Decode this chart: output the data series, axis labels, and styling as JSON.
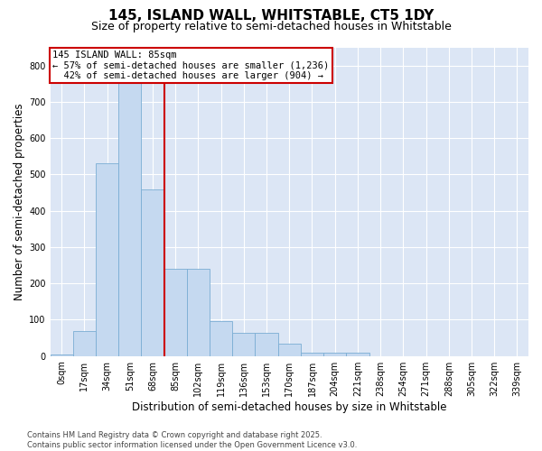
{
  "title_line1": "145, ISLAND WALL, WHITSTABLE, CT5 1DY",
  "title_line2": "Size of property relative to semi-detached houses in Whitstable",
  "xlabel": "Distribution of semi-detached houses by size in Whitstable",
  "ylabel": "Number of semi-detached properties",
  "bar_color": "#c5d9f0",
  "bar_edge_color": "#7aadd4",
  "background_color": "#dce6f5",
  "grid_color": "#ffffff",
  "annotation_box_color": "#cc0000",
  "vline_color": "#cc0000",
  "fig_bg_color": "#ffffff",
  "categories": [
    "0sqm",
    "17sqm",
    "34sqm",
    "51sqm",
    "68sqm",
    "85sqm",
    "102sqm",
    "119sqm",
    "136sqm",
    "153sqm",
    "170sqm",
    "187sqm",
    "204sqm",
    "221sqm",
    "238sqm",
    "254sqm",
    "271sqm",
    "288sqm",
    "305sqm",
    "322sqm",
    "339sqm"
  ],
  "values": [
    5,
    70,
    530,
    755,
    460,
    240,
    240,
    95,
    65,
    65,
    35,
    10,
    10,
    8,
    0,
    0,
    0,
    0,
    0,
    0,
    0
  ],
  "property_size_label": "85sqm",
  "property_name": "145 ISLAND WALL",
  "pct_smaller": 57,
  "count_smaller": 1236,
  "pct_larger": 42,
  "count_larger": 904,
  "vline_x_index": 4.5,
  "ylim": [
    0,
    850
  ],
  "yticks": [
    0,
    100,
    200,
    300,
    400,
    500,
    600,
    700,
    800
  ],
  "footnote": "Contains HM Land Registry data © Crown copyright and database right 2025.\nContains public sector information licensed under the Open Government Licence v3.0.",
  "title_fontsize": 11,
  "subtitle_fontsize": 9,
  "axis_label_fontsize": 8.5,
  "tick_fontsize": 7,
  "annotation_fontsize": 7.5,
  "footnote_fontsize": 6
}
